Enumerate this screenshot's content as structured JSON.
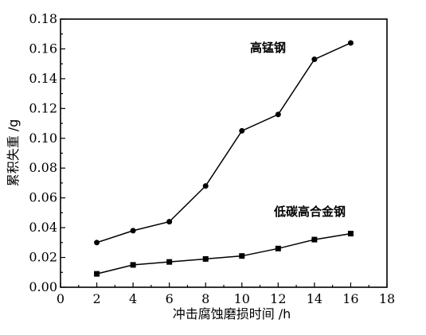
{
  "chart_data": {
    "type": "line",
    "title": "",
    "xlabel": "冲击腐蚀磨损时间 /h",
    "ylabel": "累积失重 /g",
    "xlim": [
      0,
      18
    ],
    "ylim": [
      0,
      0.18
    ],
    "x_ticks": [
      "0",
      "2",
      "4",
      "6",
      "8",
      "10",
      "12",
      "14",
      "16",
      "18"
    ],
    "y_ticks": [
      "0.00",
      "0.02",
      "0.04",
      "0.06",
      "0.08",
      "0.10",
      "0.12",
      "0.14",
      "0.16",
      "0.18"
    ],
    "grid": false,
    "legend": "none",
    "series": [
      {
        "name": "高锰钢",
        "marker": "circle",
        "x": [
          2,
          4,
          6,
          8,
          10,
          12,
          14,
          16
        ],
        "values": [
          0.03,
          0.038,
          0.044,
          0.068,
          0.105,
          0.116,
          0.153,
          0.164
        ]
      },
      {
        "name": "低碳高合金钢",
        "marker": "square",
        "x": [
          2,
          4,
          6,
          8,
          10,
          12,
          14,
          16
        ],
        "values": [
          0.009,
          0.015,
          0.017,
          0.019,
          0.021,
          0.026,
          0.032,
          0.036
        ]
      }
    ]
  }
}
